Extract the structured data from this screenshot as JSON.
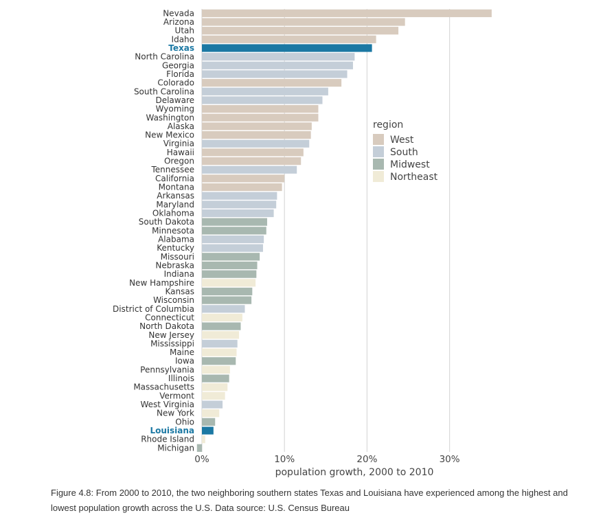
{
  "chart_data": {
    "type": "bar",
    "orientation": "horizontal",
    "xlabel": "population growth, 2000 to 2010",
    "xlim": [
      0,
      35
    ],
    "xticks": [
      0,
      10,
      20,
      30
    ],
    "xtick_labels": [
      "0%",
      "10%",
      "20%",
      "30%"
    ],
    "grid": "vertical",
    "legend": {
      "title": "region",
      "placement": "right",
      "entries": [
        {
          "name": "West",
          "color": "#d8cbbe"
        },
        {
          "name": "South",
          "color": "#c4ced8"
        },
        {
          "name": "Midwest",
          "color": "#a8b8b0"
        },
        {
          "name": "Northeast",
          "color": "#f0ebd7"
        }
      ]
    },
    "highlight_color": "#1b78a3",
    "rows": [
      {
        "state": "Nevada",
        "region": "West",
        "value": 35.1,
        "highlight": false
      },
      {
        "state": "Arizona",
        "region": "West",
        "value": 24.6,
        "highlight": false
      },
      {
        "state": "Utah",
        "region": "West",
        "value": 23.8,
        "highlight": false
      },
      {
        "state": "Idaho",
        "region": "West",
        "value": 21.1,
        "highlight": false
      },
      {
        "state": "Texas",
        "region": "South",
        "value": 20.6,
        "highlight": true
      },
      {
        "state": "North Carolina",
        "region": "South",
        "value": 18.5,
        "highlight": false
      },
      {
        "state": "Georgia",
        "region": "South",
        "value": 18.3,
        "highlight": false
      },
      {
        "state": "Florida",
        "region": "South",
        "value": 17.6,
        "highlight": false
      },
      {
        "state": "Colorado",
        "region": "West",
        "value": 16.9,
        "highlight": false
      },
      {
        "state": "South Carolina",
        "region": "South",
        "value": 15.3,
        "highlight": false
      },
      {
        "state": "Delaware",
        "region": "South",
        "value": 14.6,
        "highlight": false
      },
      {
        "state": "Wyoming",
        "region": "West",
        "value": 14.1,
        "highlight": false
      },
      {
        "state": "Washington",
        "region": "West",
        "value": 14.1,
        "highlight": false
      },
      {
        "state": "Alaska",
        "region": "West",
        "value": 13.3,
        "highlight": false
      },
      {
        "state": "New Mexico",
        "region": "West",
        "value": 13.2,
        "highlight": false
      },
      {
        "state": "Virginia",
        "region": "South",
        "value": 13.0,
        "highlight": false
      },
      {
        "state": "Hawaii",
        "region": "West",
        "value": 12.3,
        "highlight": false
      },
      {
        "state": "Oregon",
        "region": "West",
        "value": 12.0,
        "highlight": false
      },
      {
        "state": "Tennessee",
        "region": "South",
        "value": 11.5,
        "highlight": false
      },
      {
        "state": "California",
        "region": "West",
        "value": 10.0,
        "highlight": false
      },
      {
        "state": "Montana",
        "region": "West",
        "value": 9.7,
        "highlight": false
      },
      {
        "state": "Arkansas",
        "region": "South",
        "value": 9.1,
        "highlight": false
      },
      {
        "state": "Maryland",
        "region": "South",
        "value": 9.0,
        "highlight": false
      },
      {
        "state": "Oklahoma",
        "region": "South",
        "value": 8.7,
        "highlight": false
      },
      {
        "state": "South Dakota",
        "region": "Midwest",
        "value": 7.9,
        "highlight": false
      },
      {
        "state": "Minnesota",
        "region": "Midwest",
        "value": 7.8,
        "highlight": false
      },
      {
        "state": "Alabama",
        "region": "South",
        "value": 7.5,
        "highlight": false
      },
      {
        "state": "Kentucky",
        "region": "South",
        "value": 7.4,
        "highlight": false
      },
      {
        "state": "Missouri",
        "region": "Midwest",
        "value": 7.0,
        "highlight": false
      },
      {
        "state": "Nebraska",
        "region": "Midwest",
        "value": 6.7,
        "highlight": false
      },
      {
        "state": "Indiana",
        "region": "Midwest",
        "value": 6.6,
        "highlight": false
      },
      {
        "state": "New Hampshire",
        "region": "Northeast",
        "value": 6.5,
        "highlight": false
      },
      {
        "state": "Kansas",
        "region": "Midwest",
        "value": 6.1,
        "highlight": false
      },
      {
        "state": "Wisconsin",
        "region": "Midwest",
        "value": 6.0,
        "highlight": false
      },
      {
        "state": "District of Columbia",
        "region": "South",
        "value": 5.2,
        "highlight": false
      },
      {
        "state": "Connecticut",
        "region": "Northeast",
        "value": 4.9,
        "highlight": false
      },
      {
        "state": "North Dakota",
        "region": "Midwest",
        "value": 4.7,
        "highlight": false
      },
      {
        "state": "New Jersey",
        "region": "Northeast",
        "value": 4.5,
        "highlight": false
      },
      {
        "state": "Mississippi",
        "region": "South",
        "value": 4.3,
        "highlight": false
      },
      {
        "state": "Maine",
        "region": "Northeast",
        "value": 4.2,
        "highlight": false
      },
      {
        "state": "Iowa",
        "region": "Midwest",
        "value": 4.1,
        "highlight": false
      },
      {
        "state": "Pennsylvania",
        "region": "Northeast",
        "value": 3.4,
        "highlight": false
      },
      {
        "state": "Illinois",
        "region": "Midwest",
        "value": 3.3,
        "highlight": false
      },
      {
        "state": "Massachusetts",
        "region": "Northeast",
        "value": 3.1,
        "highlight": false
      },
      {
        "state": "Vermont",
        "region": "Northeast",
        "value": 2.8,
        "highlight": false
      },
      {
        "state": "West Virginia",
        "region": "South",
        "value": 2.5,
        "highlight": false
      },
      {
        "state": "New York",
        "region": "Northeast",
        "value": 2.1,
        "highlight": false
      },
      {
        "state": "Ohio",
        "region": "Midwest",
        "value": 1.6,
        "highlight": false
      },
      {
        "state": "Louisiana",
        "region": "South",
        "value": 1.4,
        "highlight": true
      },
      {
        "state": "Rhode Island",
        "region": "Northeast",
        "value": 0.4,
        "highlight": false
      },
      {
        "state": "Michigan",
        "region": "Midwest",
        "value": -0.6,
        "highlight": false
      }
    ]
  },
  "caption": "Figure 4.8: From 2000 to 2010, the two neighboring southern states Texas and Louisiana have experienced among the highest and lowest population growth across the U.S. Data source: U.S. Census Bureau"
}
